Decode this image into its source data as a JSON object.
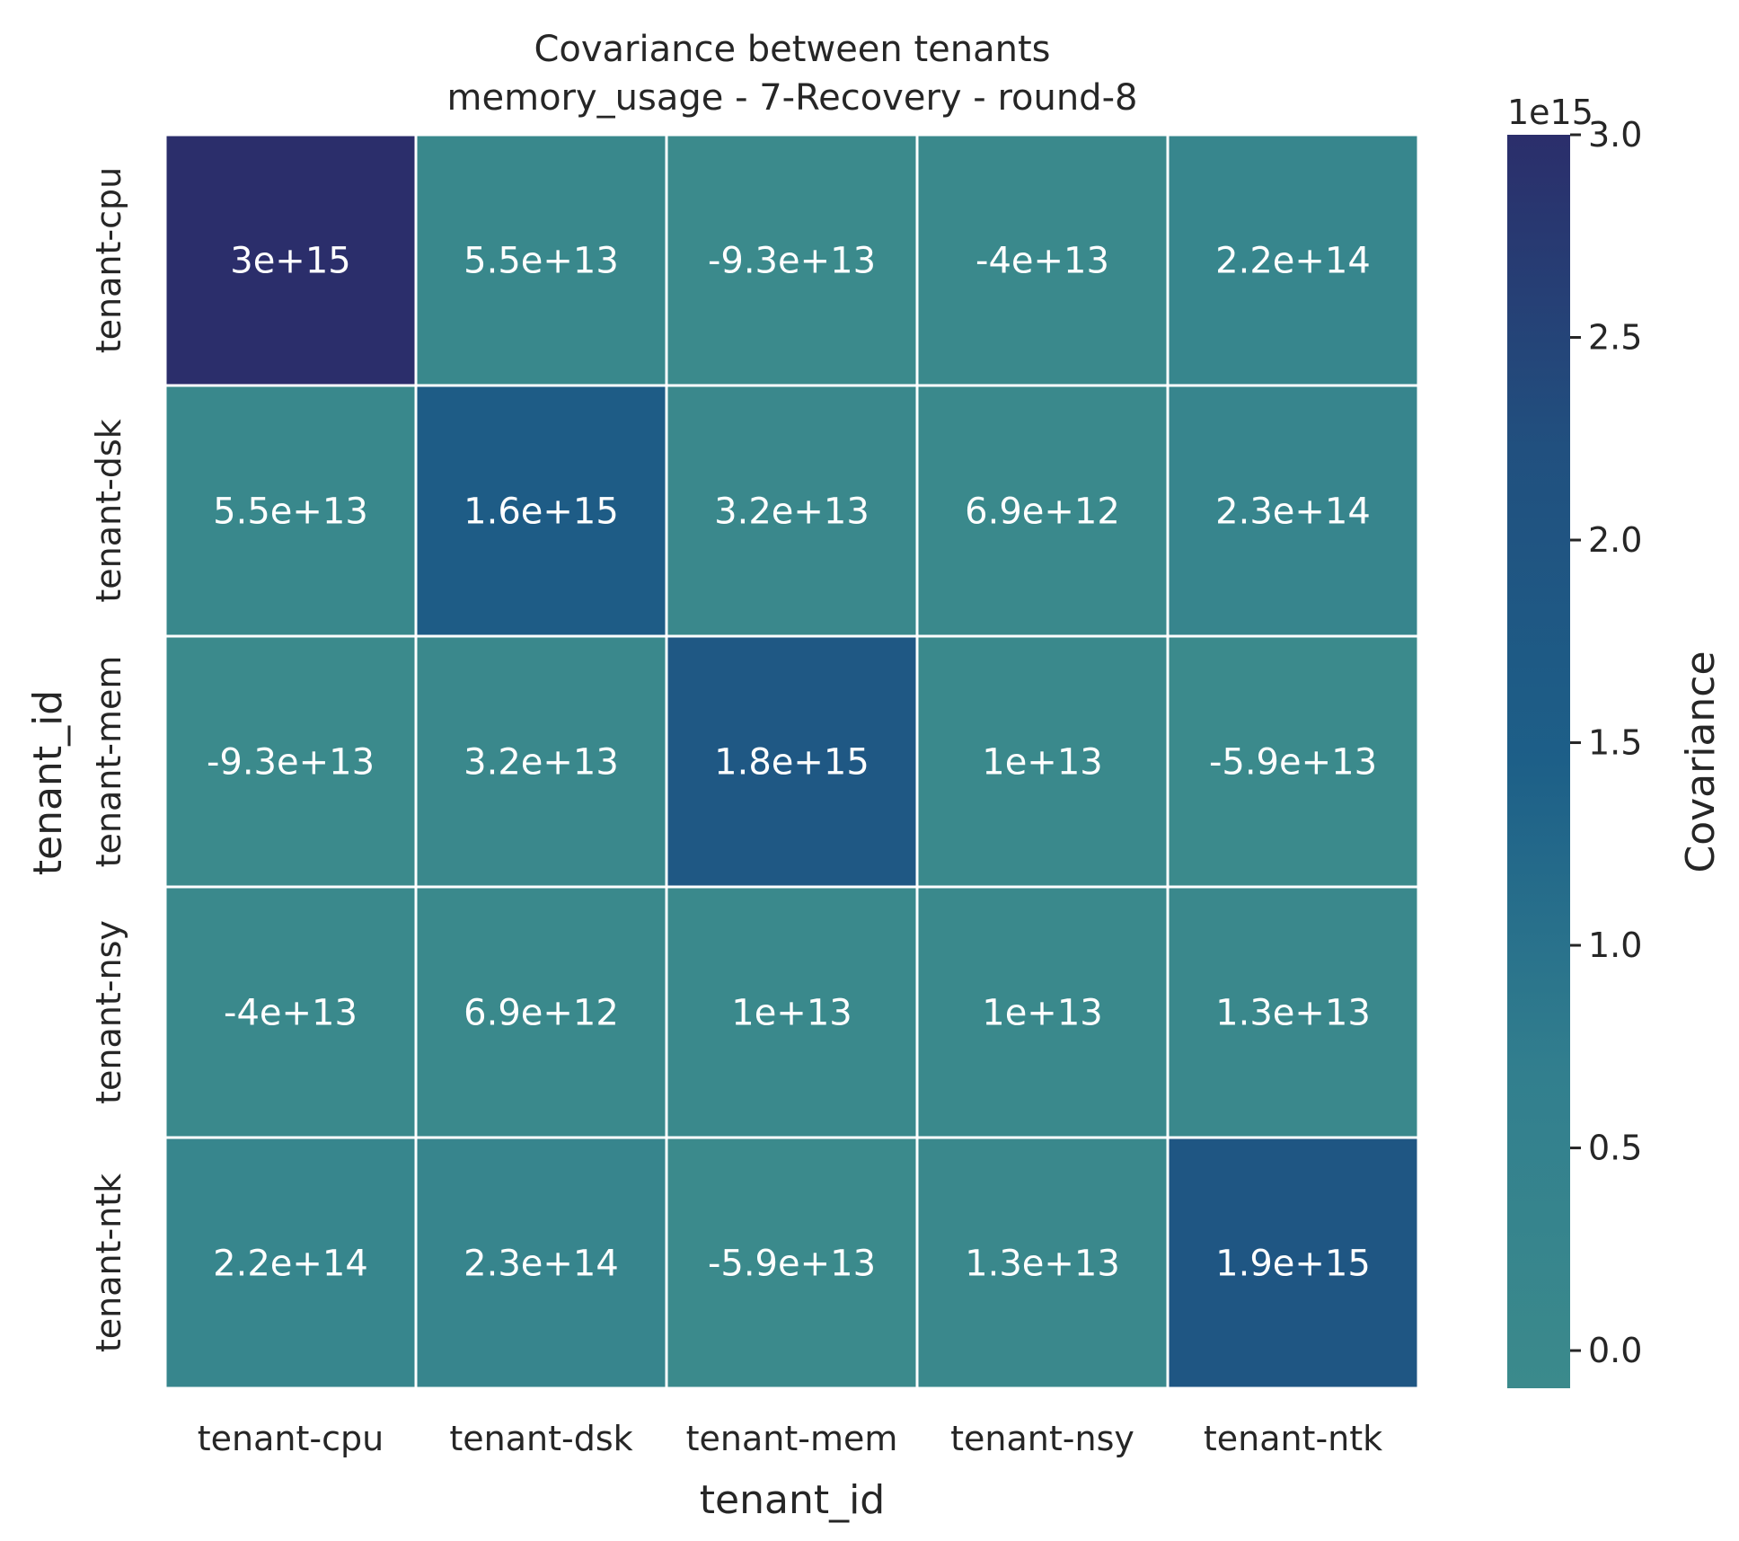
{
  "chart_data": {
    "type": "heatmap",
    "title": "Covariance between tenants",
    "subtitle": "memory_usage - 7-Recovery - round-8",
    "xlabel": "tenant_id",
    "ylabel": "tenant_id",
    "x_categories": [
      "tenant-cpu",
      "tenant-dsk",
      "tenant-mem",
      "tenant-nsy",
      "tenant-ntk"
    ],
    "y_categories": [
      "tenant-cpu",
      "tenant-dsk",
      "tenant-mem",
      "tenant-nsy",
      "tenant-ntk"
    ],
    "values": [
      [
        3000000000000000.0,
        55000000000000.0,
        -93000000000000.0,
        -40000000000000.0,
        220000000000000.0
      ],
      [
        55000000000000.0,
        1600000000000000.0,
        32000000000000.0,
        6900000000000.0,
        230000000000000.0
      ],
      [
        -93000000000000.0,
        32000000000000.0,
        1800000000000000.0,
        10000000000000.0,
        -59000000000000.0
      ],
      [
        -40000000000000.0,
        6900000000000.0,
        10000000000000.0,
        10000000000000.0,
        13000000000000.0
      ],
      [
        220000000000000.0,
        230000000000000.0,
        -59000000000000.0,
        13000000000000.0,
        1900000000000000.0
      ]
    ],
    "cell_labels": [
      [
        "3e+15",
        "5.5e+13",
        "-9.3e+13",
        "-4e+13",
        "2.2e+14"
      ],
      [
        "5.5e+13",
        "1.6e+15",
        "3.2e+13",
        "6.9e+12",
        "2.3e+14"
      ],
      [
        "-9.3e+13",
        "3.2e+13",
        "1.8e+15",
        "1e+13",
        "-5.9e+13"
      ],
      [
        "-4e+13",
        "6.9e+12",
        "1e+13",
        "1e+13",
        "1.3e+13"
      ],
      [
        "2.2e+14",
        "2.3e+14",
        "-5.9e+13",
        "1.3e+13",
        "1.9e+15"
      ]
    ],
    "colorbar": {
      "label": "Covariance",
      "offset_text": "1e15",
      "range": [
        -93000000000000.0,
        3000000000000000.0
      ],
      "ticks": [
        0.0,
        0.5,
        1.0,
        1.5,
        2.0,
        2.5,
        3.0
      ],
      "tick_labels": [
        "0.0",
        "0.5",
        "1.0",
        "1.5",
        "2.0",
        "2.5",
        "3.0"
      ],
      "tick_scale": 1000000000000000.0
    },
    "colormap": [
      "#3b8a8c",
      "#327f8e",
      "#1d5f88",
      "#21507f",
      "#2b2e6b"
    ]
  }
}
